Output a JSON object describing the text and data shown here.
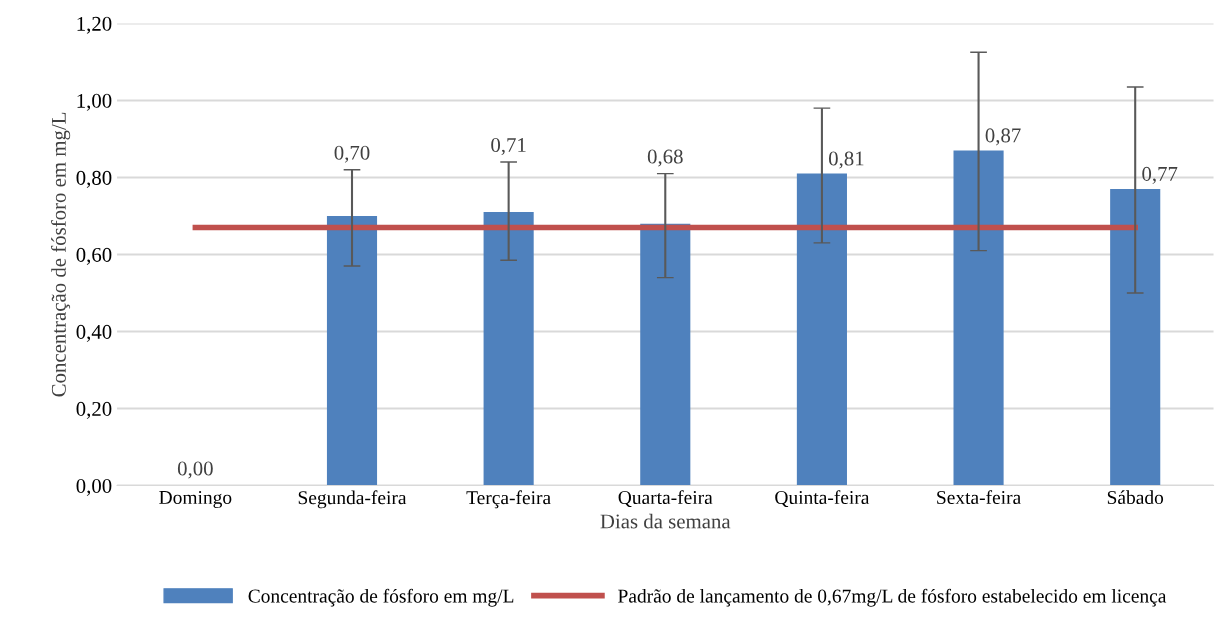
{
  "chart_data": {
    "type": "bar",
    "xlabel": "Dias da semana",
    "ylabel": "Concentração de fósforo em mg/L",
    "categories": [
      "Domingo",
      "Segunda-feira",
      "Terça-feira",
      "Quarta-feira",
      "Quinta-feira",
      "Sexta-feira",
      "Sábado"
    ],
    "series": [
      {
        "name": "Concentração de fósforo em mg/L",
        "color": "#4f81bd",
        "values": [
          0.0,
          0.7,
          0.71,
          0.68,
          0.81,
          0.87,
          0.77
        ],
        "value_labels": [
          "0,00",
          "0,70",
          "0,71",
          "0,68",
          "0,81",
          "0,87",
          "0,77"
        ],
        "errors": [
          null,
          [
            0.57,
            0.82
          ],
          [
            0.585,
            0.84
          ],
          [
            0.54,
            0.81
          ],
          [
            0.63,
            0.98
          ],
          [
            0.61,
            1.125
          ],
          [
            0.5,
            1.035
          ]
        ]
      },
      {
        "name": "Padrão de lançamento de 0,67mg/L de fósforo estabelecido em licença",
        "type": "line",
        "color": "#c0504d",
        "values": [
          0.67,
          0.67,
          0.67,
          0.67,
          0.67,
          0.67,
          0.67
        ]
      }
    ],
    "ylim": [
      0,
      1.2
    ],
    "yticks": [
      {
        "value": 0,
        "label": "0,00"
      },
      {
        "value": 0.2,
        "label": "0,20"
      },
      {
        "value": 0.4,
        "label": "0,40"
      },
      {
        "value": 0.6,
        "label": "0,60"
      },
      {
        "value": 0.8,
        "label": "0,80"
      },
      {
        "value": 1.0,
        "label": "1,00"
      },
      {
        "value": 1.2,
        "label": "1,20"
      }
    ],
    "grid": "y",
    "legend": "bottom"
  }
}
